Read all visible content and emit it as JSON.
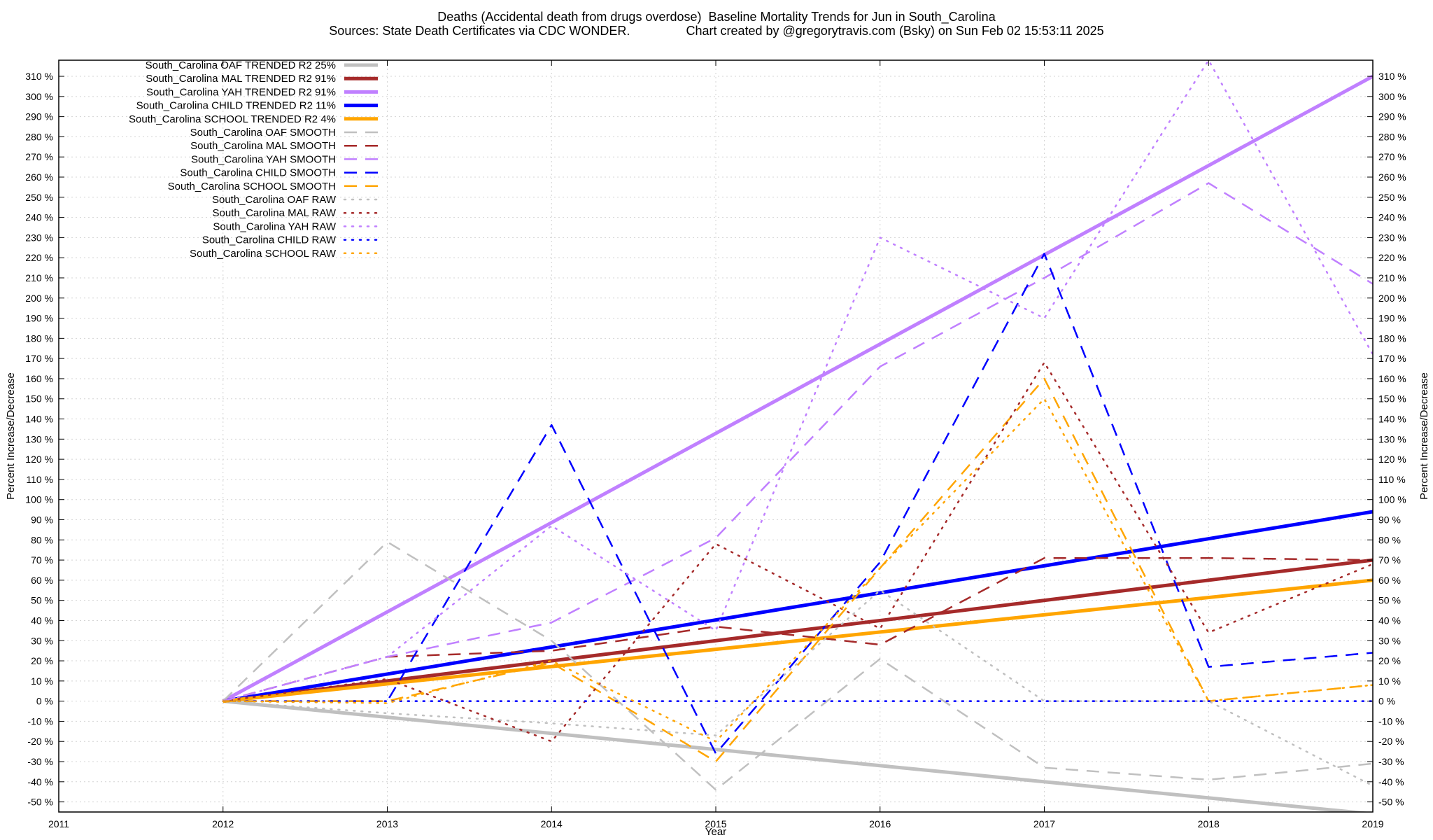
{
  "chart_data": {
    "type": "line",
    "title": "Deaths (Accidental death from drugs overdose)  Baseline Mortality Trends for Jun in South_Carolina",
    "subtitle": "Sources: State Death Certificates via CDC WONDER.                Chart created by @gregorytravis.com (Bsky) on Sun Feb 02 15:53:11 2025",
    "xlabel": "Year",
    "ylabel": "Percent Increase/Decrease",
    "y2label": "Percent Increase/Decrease",
    "xlim": [
      2011,
      2019
    ],
    "ylim": [
      -55,
      318
    ],
    "x_ticks": [
      2011,
      2012,
      2013,
      2014,
      2015,
      2016,
      2017,
      2018,
      2019
    ],
    "y_ticks": [
      -50,
      -40,
      -30,
      -20,
      -10,
      0,
      10,
      20,
      30,
      40,
      50,
      60,
      70,
      80,
      90,
      100,
      110,
      120,
      130,
      140,
      150,
      160,
      170,
      180,
      190,
      200,
      210,
      220,
      230,
      240,
      250,
      260,
      270,
      280,
      290,
      300,
      310
    ],
    "y_tick_suffix": " %",
    "grid": true,
    "legend_position": "top-left",
    "series": [
      {
        "name": "South_Carolina OAF TRENDED R2  25%",
        "color": "#c0c0c0",
        "style": "solid",
        "width": 5,
        "x": [
          2012,
          2019
        ],
        "y": [
          0,
          -56
        ]
      },
      {
        "name": "South_Carolina MAL TRENDED R2  91%",
        "color": "#a52a2a",
        "style": "solid",
        "width": 5,
        "x": [
          2012,
          2019
        ],
        "y": [
          0,
          70
        ]
      },
      {
        "name": "South_Carolina YAH TRENDED R2  91%",
        "color": "#c080ff",
        "style": "solid",
        "width": 5,
        "x": [
          2012,
          2019
        ],
        "y": [
          0,
          310
        ]
      },
      {
        "name": "South_Carolina CHILD TRENDED R2  11%",
        "color": "#0000ff",
        "style": "solid",
        "width": 5,
        "x": [
          2012,
          2019
        ],
        "y": [
          0,
          94
        ]
      },
      {
        "name": "South_Carolina SCHOOL TRENDED R2   4%",
        "color": "#ffa500",
        "style": "solid",
        "width": 5,
        "x": [
          2012,
          2019
        ],
        "y": [
          0,
          60
        ]
      },
      {
        "name": "South_Carolina OAF SMOOTH",
        "color": "#c0c0c0",
        "style": "dashed",
        "width": 2.5,
        "x": [
          2012,
          2013,
          2014,
          2015,
          2016,
          2017,
          2018,
          2019
        ],
        "y": [
          0,
          79,
          30,
          -44,
          21,
          -33,
          -39,
          -31
        ]
      },
      {
        "name": "South_Carolina MAL SMOOTH",
        "color": "#a52a2a",
        "style": "dashed",
        "width": 2.5,
        "x": [
          2012,
          2013,
          2014,
          2015,
          2016,
          2017,
          2018,
          2019
        ],
        "y": [
          0,
          22,
          25,
          37,
          28,
          71,
          71,
          70
        ]
      },
      {
        "name": "South_Carolina YAH SMOOTH",
        "color": "#c080ff",
        "style": "dashed",
        "width": 2.5,
        "x": [
          2012,
          2013,
          2014,
          2015,
          2016,
          2017,
          2018,
          2019
        ],
        "y": [
          0,
          22,
          39,
          81,
          166,
          210,
          257,
          207
        ]
      },
      {
        "name": "South_Carolina CHILD SMOOTH",
        "color": "#0000ff",
        "style": "dashed",
        "width": 2.5,
        "x": [
          2012,
          2013,
          2014,
          2015,
          2016,
          2017,
          2018,
          2019
        ],
        "y": [
          0,
          0,
          137,
          -26,
          69,
          222,
          17,
          24
        ]
      },
      {
        "name": "South_Carolina SCHOOL SMOOTH",
        "color": "#ffa500",
        "style": "dashed",
        "width": 2.5,
        "x": [
          2012,
          2013,
          2014,
          2015,
          2016,
          2017,
          2018,
          2019
        ],
        "y": [
          0,
          0,
          19,
          -30,
          66,
          160,
          0,
          8
        ]
      },
      {
        "name": "South_Carolina OAF RAW",
        "color": "#c0c0c0",
        "style": "dotted",
        "width": 2.5,
        "x": [
          2012,
          2013,
          2014,
          2015,
          2016,
          2017,
          2018,
          2019
        ],
        "y": [
          0,
          -6,
          -11,
          -17,
          55,
          0,
          0,
          -42
        ]
      },
      {
        "name": "South_Carolina MAL RAW",
        "color": "#a52a2a",
        "style": "dotted",
        "width": 2.5,
        "x": [
          2012,
          2013,
          2014,
          2015,
          2016,
          2017,
          2018,
          2019
        ],
        "y": [
          0,
          11,
          -20,
          78,
          36,
          168,
          34,
          68
        ]
      },
      {
        "name": "South_Carolina YAH RAW",
        "color": "#c080ff",
        "style": "dotted",
        "width": 2.5,
        "x": [
          2012,
          2013,
          2014,
          2015,
          2016,
          2017,
          2018,
          2019
        ],
        "y": [
          0,
          22,
          87,
          35,
          230,
          190,
          318,
          172
        ]
      },
      {
        "name": "South_Carolina CHILD RAW",
        "color": "#0000ff",
        "style": "dotted",
        "width": 2.5,
        "x": [
          2012,
          2013,
          2014,
          2015,
          2016,
          2017,
          2018,
          2019
        ],
        "y": [
          0,
          0,
          0,
          0,
          0,
          0,
          0,
          0
        ]
      },
      {
        "name": "South_Carolina SCHOOL RAW",
        "color": "#ffa500",
        "style": "dotted",
        "width": 2.5,
        "x": [
          2012,
          2013,
          2014,
          2015,
          2016,
          2017,
          2018,
          2019
        ],
        "y": [
          0,
          -1,
          20,
          -20,
          66,
          150,
          0,
          8
        ]
      }
    ]
  }
}
